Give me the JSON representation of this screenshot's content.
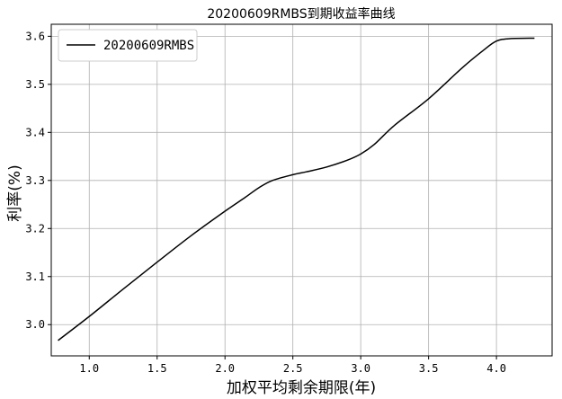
{
  "chart_data": {
    "type": "line",
    "title": "20200609RMBS到期收益率曲线",
    "xlabel": "加权平均剩余期限(年)",
    "ylabel": "利率(%)",
    "xlim": [
      0.72,
      4.41
    ],
    "ylim": [
      2.935,
      3.625
    ],
    "xticks": [
      1.0,
      1.5,
      2.0,
      2.5,
      3.0,
      3.5,
      4.0
    ],
    "xtick_labels": [
      "1.0",
      "1.5",
      "2.0",
      "2.5",
      "3.0",
      "3.5",
      "4.0"
    ],
    "yticks": [
      3.0,
      3.1,
      3.2,
      3.3,
      3.4,
      3.5,
      3.6
    ],
    "ytick_labels": [
      "3.0",
      "3.1",
      "3.2",
      "3.3",
      "3.4",
      "3.5",
      "3.6"
    ],
    "grid": true,
    "legend": "top-left",
    "series": [
      {
        "name": "20200609RMBS",
        "color": "#000000",
        "x": [
          0.77,
          1.0,
          1.25,
          1.5,
          1.75,
          2.0,
          2.15,
          2.25,
          2.35,
          2.5,
          2.6,
          2.75,
          2.9,
          3.0,
          3.1,
          3.25,
          3.5,
          3.75,
          3.9,
          4.0,
          4.1,
          4.28
        ],
        "y": [
          2.967,
          3.017,
          3.074,
          3.13,
          3.185,
          3.236,
          3.265,
          3.285,
          3.3,
          3.312,
          3.318,
          3.328,
          3.342,
          3.355,
          3.375,
          3.415,
          3.47,
          3.535,
          3.57,
          3.59,
          3.595,
          3.596
        ]
      }
    ]
  }
}
